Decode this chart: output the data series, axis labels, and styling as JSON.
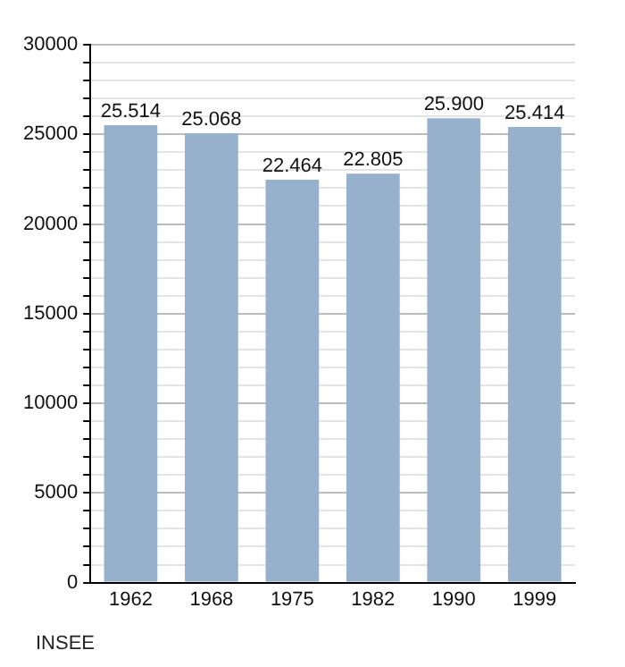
{
  "chart_data": {
    "type": "bar",
    "categories": [
      "1962",
      "1968",
      "1975",
      "1982",
      "1990",
      "1999"
    ],
    "values": [
      25514,
      25068,
      22464,
      22805,
      25900,
      25414
    ],
    "value_labels": [
      "25.514",
      "25.068",
      "22.464",
      "22.805",
      "25.900",
      "25.414"
    ],
    "color": "#97b0cb",
    "ylim": [
      0,
      30000
    ],
    "yticks": [
      0,
      {
        "value": 1000,
        "label": null
      },
      {
        "value": 2000,
        "label": null
      },
      {
        "value": 3000,
        "label": null
      },
      {
        "value": 4000,
        "label": null
      },
      5000,
      {
        "value": 6000,
        "label": null
      },
      {
        "value": 7000,
        "label": null
      },
      {
        "value": 8000,
        "label": null
      },
      {
        "value": 9000,
        "label": null
      },
      10000,
      {
        "value": 11000,
        "label": null
      },
      {
        "value": 12000,
        "label": null
      },
      {
        "value": 13000,
        "label": null
      },
      {
        "value": 14000,
        "label": null
      },
      15000,
      {
        "value": 16000,
        "label": null
      },
      {
        "value": 17000,
        "label": null
      },
      {
        "value": 18000,
        "label": null
      },
      {
        "value": 19000,
        "label": null
      },
      20000,
      {
        "value": 21000,
        "label": null
      },
      {
        "value": 22000,
        "label": null
      },
      {
        "value": 23000,
        "label": null
      },
      {
        "value": 24000,
        "label": null
      },
      25000,
      {
        "value": 26000,
        "label": null
      },
      {
        "value": 27000,
        "label": null
      },
      {
        "value": 28000,
        "label": null
      },
      {
        "value": 29000,
        "label": null
      },
      30000
    ],
    "grid": "y",
    "annotations": [
      "INSEE"
    ]
  }
}
